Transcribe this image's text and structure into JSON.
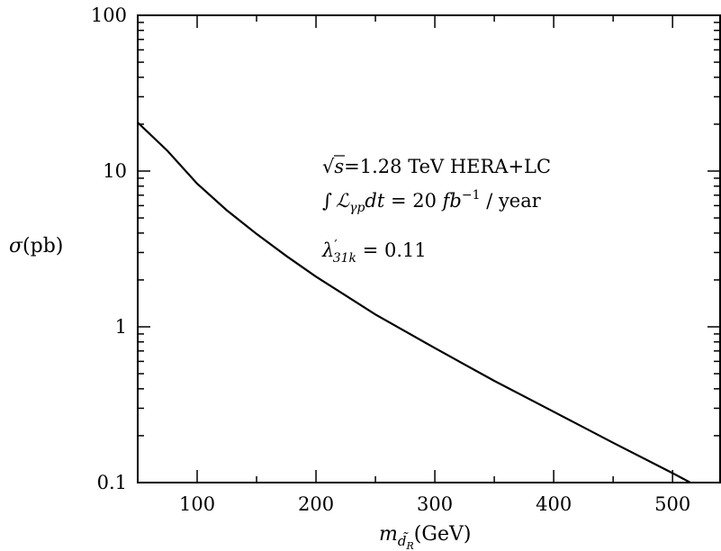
{
  "chart_data": {
    "type": "line",
    "title": "",
    "xlabel": {
      "main": "m",
      "sub": "d̃",
      "subsub": "R",
      "unit": "(GeV)"
    },
    "ylabel": {
      "symbol": "σ",
      "unit": "(pb)"
    },
    "xlim": [
      50,
      540
    ],
    "ylim": [
      0.1,
      100
    ],
    "yscale": "log",
    "grid": false,
    "x_ticks": [
      100,
      200,
      300,
      400,
      500
    ],
    "x_tick_labels": [
      "100",
      "200",
      "300",
      "400",
      "500"
    ],
    "y_ticks": [
      0.1,
      1,
      10,
      100
    ],
    "y_tick_labels": [
      "0.1",
      "1",
      "10",
      "100"
    ],
    "series": [
      {
        "x": [
          50,
          75,
          100,
          125,
          150,
          175,
          200,
          250,
          300,
          350,
          400,
          450,
          500,
          515
        ],
        "values": [
          20.5,
          13.5,
          8.3,
          5.6,
          3.95,
          2.85,
          2.1,
          1.2,
          0.73,
          0.45,
          0.285,
          0.18,
          0.115,
          0.1
        ]
      }
    ],
    "annotations": {
      "line1_sqrt": "√",
      "line1_s": "s",
      "line1_text": "=1.28 TeV HERA+LC",
      "line2_integral": "∫",
      "line2_L": "ℒ",
      "line2_Lsub": "γp",
      "line2_dt": "dt",
      "line2_eq": " = 20 ",
      "line2_fb": "fb",
      "line2_exp": "−1",
      "line2_unit": " / year",
      "line3_lambda": "λ",
      "line3_prime": "′",
      "line3_sub": "31k",
      "line3_value": " = 0.11"
    }
  }
}
